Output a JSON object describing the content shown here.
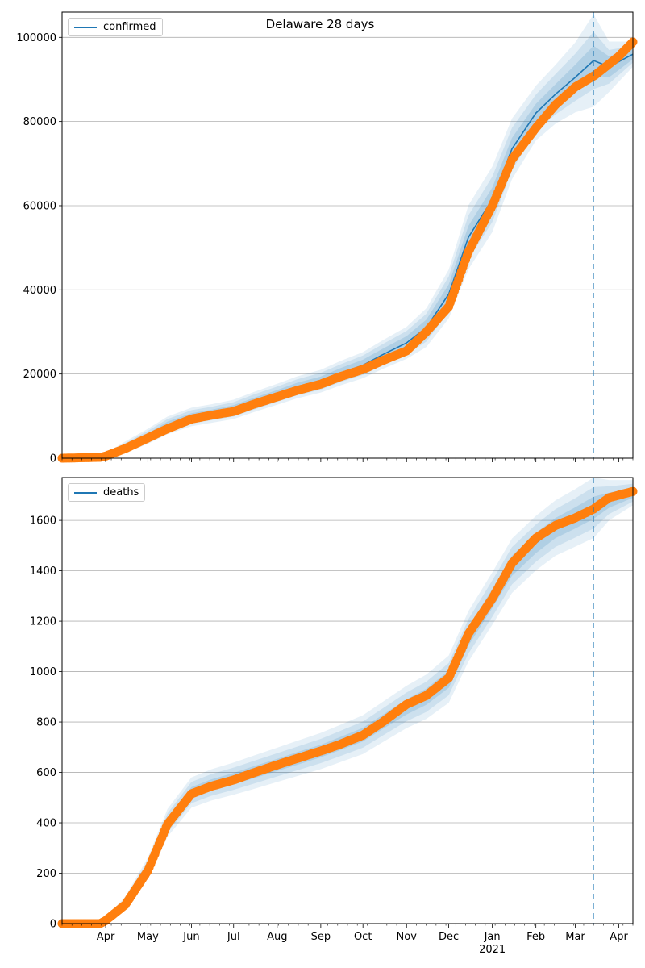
{
  "title": "Delaware 28 days",
  "colors": {
    "model": "#1f77b4",
    "observed": "#ff7f0e",
    "grid": "#b0b0b0"
  },
  "x_axis": {
    "type": "date",
    "range": [
      "2020-03-01",
      "2021-04-11"
    ],
    "tick_labels": [
      "Apr",
      "May",
      "Jun",
      "Jul",
      "Aug",
      "Sep",
      "Oct",
      "Nov",
      "Dec",
      "Jan",
      "Feb",
      "Mar",
      "Apr"
    ],
    "tick_dates": [
      "2020-04-01",
      "2020-05-01",
      "2020-06-01",
      "2020-07-01",
      "2020-08-01",
      "2020-09-01",
      "2020-10-01",
      "2020-11-01",
      "2020-12-01",
      "2021-01-01",
      "2021-02-01",
      "2021-03-01",
      "2021-04-01"
    ],
    "year_label": "2021",
    "forecast_start": "2021-03-14"
  },
  "chart_data": [
    {
      "type": "line",
      "legend": "confirmed",
      "legend_position": "top-left",
      "grid": "horizontal",
      "ylim": [
        0,
        106000
      ],
      "yticks": [
        0,
        20000,
        40000,
        60000,
        80000,
        100000
      ],
      "ytick_labels": [
        "0",
        "20000",
        "40000",
        "60000",
        "80000",
        "100000"
      ],
      "series": [
        {
          "name": "confirmed",
          "role": "model",
          "x": [
            "2020-03-01",
            "2020-04-01",
            "2020-04-15",
            "2020-05-01",
            "2020-05-15",
            "2020-06-01",
            "2020-06-15",
            "2020-07-01",
            "2020-07-15",
            "2020-08-01",
            "2020-08-15",
            "2020-09-01",
            "2020-09-15",
            "2020-10-01",
            "2020-10-15",
            "2020-11-01",
            "2020-11-15",
            "2020-12-01",
            "2020-12-15",
            "2021-01-01",
            "2021-01-15",
            "2021-02-01",
            "2021-02-15",
            "2021-03-01",
            "2021-03-14",
            "2021-03-25",
            "2021-04-11"
          ],
          "y": [
            0,
            500,
            2600,
            5200,
            7800,
            9800,
            10600,
            11600,
            13300,
            15200,
            16800,
            18300,
            20200,
            22100,
            24600,
            27400,
            31000,
            39000,
            52500,
            61500,
            73500,
            82000,
            86500,
            90500,
            94500,
            93000,
            96000
          ]
        },
        {
          "name": "confirmed observed",
          "role": "observed",
          "x": [
            "2020-03-01",
            "2020-03-28",
            "2020-04-01",
            "2020-04-15",
            "2020-05-01",
            "2020-05-15",
            "2020-06-01",
            "2020-06-15",
            "2020-07-01",
            "2020-07-15",
            "2020-08-01",
            "2020-08-15",
            "2020-09-01",
            "2020-09-15",
            "2020-10-01",
            "2020-10-15",
            "2020-11-01",
            "2020-11-15",
            "2020-12-01",
            "2020-12-15",
            "2021-01-01",
            "2021-01-15",
            "2021-02-01",
            "2021-02-15",
            "2021-03-01",
            "2021-03-15",
            "2021-04-01",
            "2021-04-11"
          ],
          "y": [
            0,
            200,
            500,
            2300,
            4800,
            7000,
            9300,
            10200,
            11100,
            12800,
            14600,
            16100,
            17600,
            19400,
            21100,
            23200,
            25500,
            30000,
            36000,
            49000,
            60000,
            71000,
            78500,
            84000,
            88200,
            91000,
            95500,
            98900
          ]
        }
      ],
      "uncertainty_bands": [
        {
          "level": "inner",
          "half_width": [
            0,
            300,
            600,
            700,
            900,
            900,
            900,
            1000,
            1000,
            1000,
            1100,
            1100,
            1200,
            1300,
            1400,
            1600,
            1900,
            2300,
            2700,
            2800,
            2600,
            2200,
            2400,
            3000,
            3500,
            2500,
            1200
          ]
        },
        {
          "level": "middle",
          "half_width": [
            0,
            500,
            1000,
            1300,
            1500,
            1600,
            1600,
            1700,
            1800,
            1800,
            1900,
            2000,
            2100,
            2300,
            2500,
            2800,
            3300,
            4200,
            5200,
            5400,
            5000,
            4400,
            4800,
            5600,
            6800,
            4000,
            2000
          ]
        },
        {
          "level": "outer",
          "half_width": [
            0,
            700,
            1400,
            1800,
            2100,
            2200,
            2200,
            2300,
            2400,
            2500,
            2600,
            2700,
            2900,
            3100,
            3400,
            3800,
            4600,
            5800,
            7600,
            7800,
            7200,
            6500,
            7000,
            8300,
            11000,
            6000,
            3000
          ]
        }
      ]
    },
    {
      "type": "line",
      "legend": "deaths",
      "legend_position": "top-left",
      "grid": "horizontal",
      "ylim": [
        0,
        1770
      ],
      "yticks": [
        0,
        200,
        400,
        600,
        800,
        1000,
        1200,
        1400,
        1600
      ],
      "ytick_labels": [
        "0",
        "200",
        "400",
        "600",
        "800",
        "1000",
        "1200",
        "1400",
        "1600"
      ],
      "series": [
        {
          "name": "deaths",
          "role": "model",
          "x": [
            "2020-03-01",
            "2020-03-28",
            "2020-04-01",
            "2020-04-15",
            "2020-05-01",
            "2020-05-15",
            "2020-06-01",
            "2020-06-15",
            "2020-07-01",
            "2020-07-15",
            "2020-08-01",
            "2020-08-15",
            "2020-09-01",
            "2020-09-15",
            "2020-10-01",
            "2020-10-15",
            "2020-11-01",
            "2020-11-15",
            "2020-12-01",
            "2020-12-15",
            "2021-01-01",
            "2021-01-15",
            "2021-02-01",
            "2021-02-15",
            "2021-03-01",
            "2021-03-14",
            "2021-03-25",
            "2021-04-11"
          ],
          "y": [
            0,
            0,
            15,
            80,
            220,
            400,
            520,
            550,
            575,
            600,
            630,
            655,
            685,
            715,
            750,
            800,
            860,
            900,
            970,
            1140,
            1290,
            1420,
            1510,
            1570,
            1610,
            1650,
            1680,
            1710
          ]
        },
        {
          "name": "deaths observed",
          "role": "observed",
          "x": [
            "2020-03-01",
            "2020-03-28",
            "2020-04-01",
            "2020-04-15",
            "2020-05-01",
            "2020-05-15",
            "2020-06-01",
            "2020-06-15",
            "2020-07-01",
            "2020-07-15",
            "2020-08-01",
            "2020-08-15",
            "2020-09-01",
            "2020-09-15",
            "2020-10-01",
            "2020-10-15",
            "2020-11-01",
            "2020-11-15",
            "2020-12-01",
            "2020-12-15",
            "2021-01-01",
            "2021-01-15",
            "2021-02-01",
            "2021-02-15",
            "2021-03-01",
            "2021-03-14",
            "2021-03-25",
            "2021-04-11"
          ],
          "y": [
            0,
            0,
            12,
            75,
            210,
            395,
            515,
            545,
            570,
            598,
            630,
            655,
            685,
            712,
            748,
            800,
            870,
            905,
            975,
            1150,
            1290,
            1430,
            1530,
            1580,
            1610,
            1645,
            1690,
            1715
          ]
        }
      ],
      "uncertainty_bands": [
        {
          "level": "inner",
          "half_width": [
            0,
            0,
            3,
            10,
            15,
            20,
            22,
            22,
            23,
            24,
            24,
            25,
            25,
            26,
            27,
            28,
            30,
            32,
            34,
            36,
            38,
            40,
            40,
            40,
            42,
            44,
            30,
            20
          ]
        },
        {
          "level": "middle",
          "half_width": [
            0,
            0,
            6,
            20,
            30,
            38,
            42,
            43,
            44,
            45,
            46,
            47,
            48,
            50,
            52,
            54,
            57,
            60,
            64,
            68,
            72,
            74,
            74,
            75,
            78,
            82,
            55,
            35
          ]
        },
        {
          "level": "outer",
          "half_width": [
            0,
            0,
            9,
            28,
            42,
            55,
            60,
            62,
            64,
            66,
            68,
            70,
            72,
            74,
            77,
            80,
            84,
            88,
            94,
            100,
            104,
            108,
            108,
            110,
            114,
            120,
            80,
            50
          ]
        }
      ]
    }
  ]
}
